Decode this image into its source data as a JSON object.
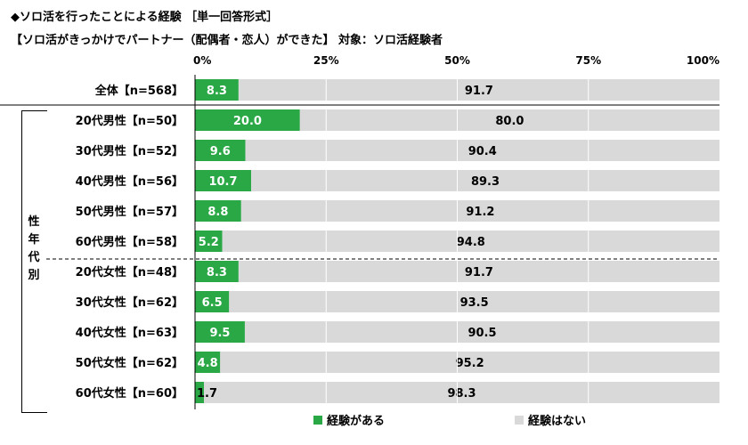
{
  "title_line1": "◆ソロ活を行ったことによる経験 ［単一回答形式］",
  "title_line2": "【ソロ活がきっかけでパートナー（配偶者・恋人）ができた】 対象：ソロ活経験者",
  "group_label": "性年代別",
  "colors": {
    "yes": "#2aa845",
    "no": "#d9d9d9",
    "grid": "#ffffff"
  },
  "chart_data": {
    "type": "bar",
    "orientation": "horizontal",
    "stacked": true,
    "percent": true,
    "xlim": [
      0,
      100
    ],
    "x_ticks": [
      "0%",
      "25%",
      "50%",
      "75%",
      "100%"
    ],
    "categories": [
      "全体【n=568】",
      "20代男性【n=50】",
      "30代男性【n=52】",
      "40代男性【n=56】",
      "50代男性【n=57】",
      "60代男性【n=58】",
      "20代女性【n=48】",
      "30代女性【n=62】",
      "40代女性【n=63】",
      "50代女性【n=62】",
      "60代女性【n=60】"
    ],
    "series": [
      {
        "name": "経験がある",
        "values": [
          8.3,
          20.0,
          9.6,
          10.7,
          8.8,
          5.2,
          8.3,
          6.5,
          9.5,
          4.8,
          1.7
        ]
      },
      {
        "name": "経験はない",
        "values": [
          91.7,
          80.0,
          90.4,
          89.3,
          91.2,
          94.8,
          91.7,
          93.5,
          90.5,
          95.2,
          98.3
        ]
      }
    ],
    "value_labels_yes": [
      "8.3",
      "20.0",
      "9.6",
      "10.7",
      "8.8",
      "5.2",
      "8.3",
      "6.5",
      "9.5",
      "4.8",
      "1.7"
    ],
    "value_labels_no": [
      "91.7",
      "80.0",
      "90.4",
      "89.3",
      "91.2",
      "94.8",
      "91.7",
      "93.5",
      "90.5",
      "95.2",
      "98.3"
    ],
    "legend_position": "bottom"
  }
}
